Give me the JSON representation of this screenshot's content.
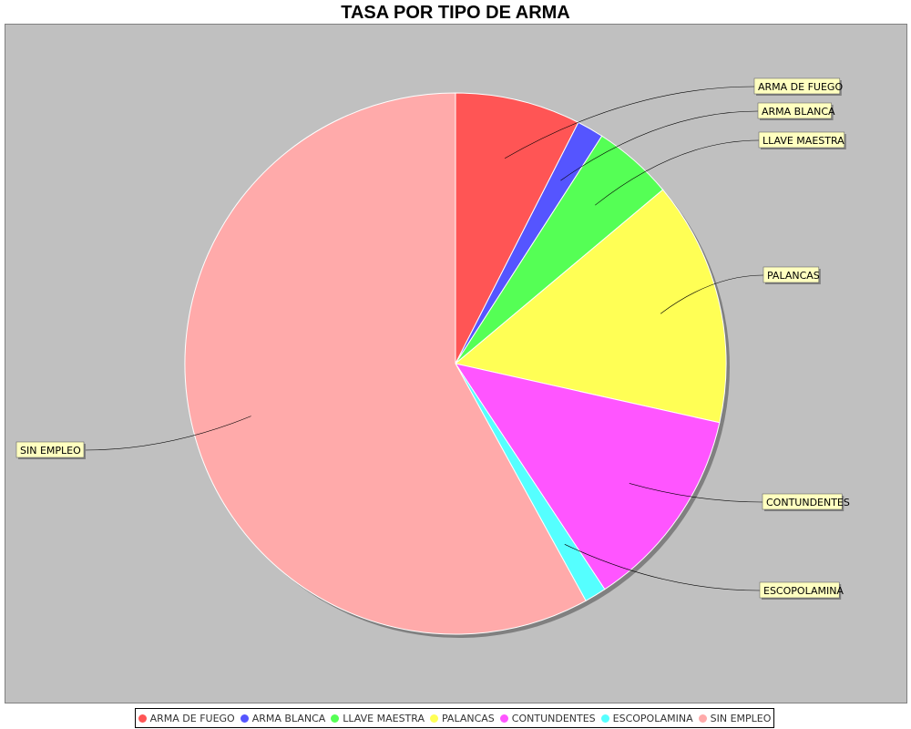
{
  "chart_data": {
    "type": "pie",
    "title": "TASA POR TIPO DE ARMA",
    "categories": [
      "ARMA DE FUEGO",
      "ARMA BLANCA",
      "LLAVE MAESTRA",
      "PALANCAS",
      "CONTUNDENTES",
      "ESCOPOLAMINA",
      "SIN EMPLEO"
    ],
    "values": [
      7.5,
      1.6,
      4.8,
      14.6,
      12.2,
      1.3,
      58.0
    ],
    "colors": [
      "#ff5555",
      "#5555ff",
      "#55ff55",
      "#ffff55",
      "#ff55ff",
      "#55ffff",
      "#ffaaaa"
    ],
    "legend_position": "bottom",
    "background": "#c0c0c0"
  }
}
